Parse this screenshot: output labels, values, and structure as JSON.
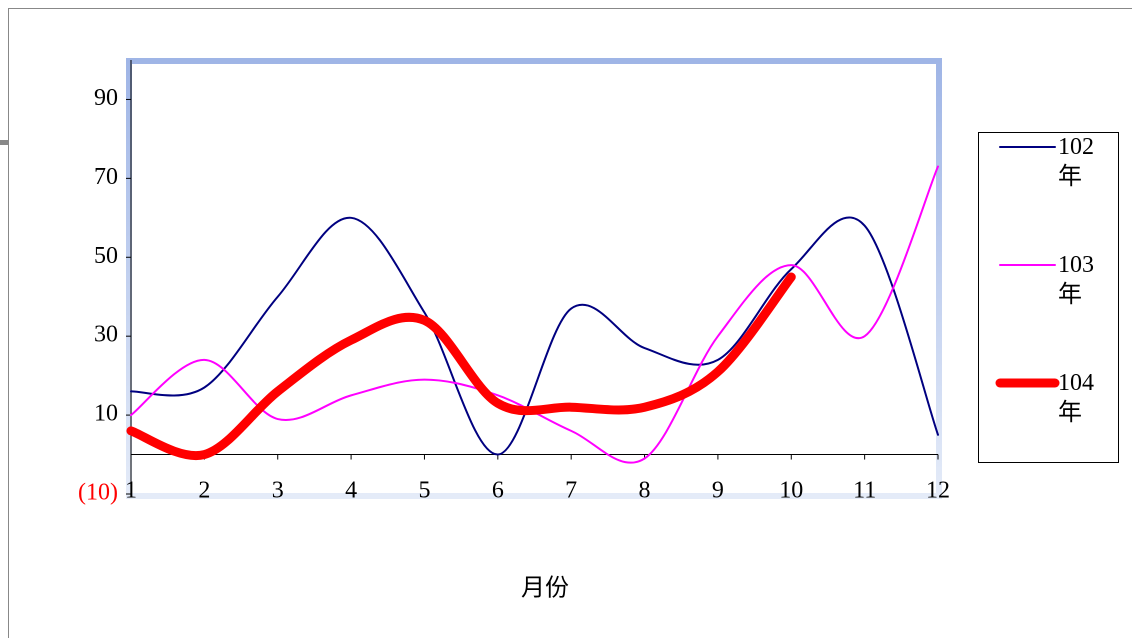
{
  "chart_data": {
    "type": "line",
    "x_label": "月份",
    "x": [
      1,
      2,
      3,
      4,
      5,
      6,
      7,
      8,
      9,
      10,
      11,
      12
    ],
    "xlim": [
      1,
      12
    ],
    "xticks": [
      1,
      2,
      3,
      4,
      5,
      6,
      7,
      8,
      9,
      10,
      11,
      12
    ],
    "ylim": [
      -10,
      100
    ],
    "yticks": [
      {
        "value": -10,
        "label": "(10)"
      },
      10,
      30,
      50,
      70,
      90
    ],
    "smooth": true,
    "series": [
      {
        "name": "102年",
        "color": "#000080",
        "width": 2,
        "values": [
          16,
          17,
          40,
          60,
          36,
          0,
          37,
          27,
          24,
          47,
          58,
          5
        ]
      },
      {
        "name": "103年",
        "color": "#ff00ff",
        "width": 2,
        "values": [
          10,
          24,
          9,
          15,
          19,
          15,
          6,
          -1,
          30,
          48,
          30,
          73
        ]
      },
      {
        "name": "104年",
        "color": "#ff0000",
        "width": 9,
        "values": [
          6,
          0,
          16,
          29,
          34,
          13,
          12,
          12,
          21,
          45,
          null,
          null
        ]
      }
    ]
  }
}
